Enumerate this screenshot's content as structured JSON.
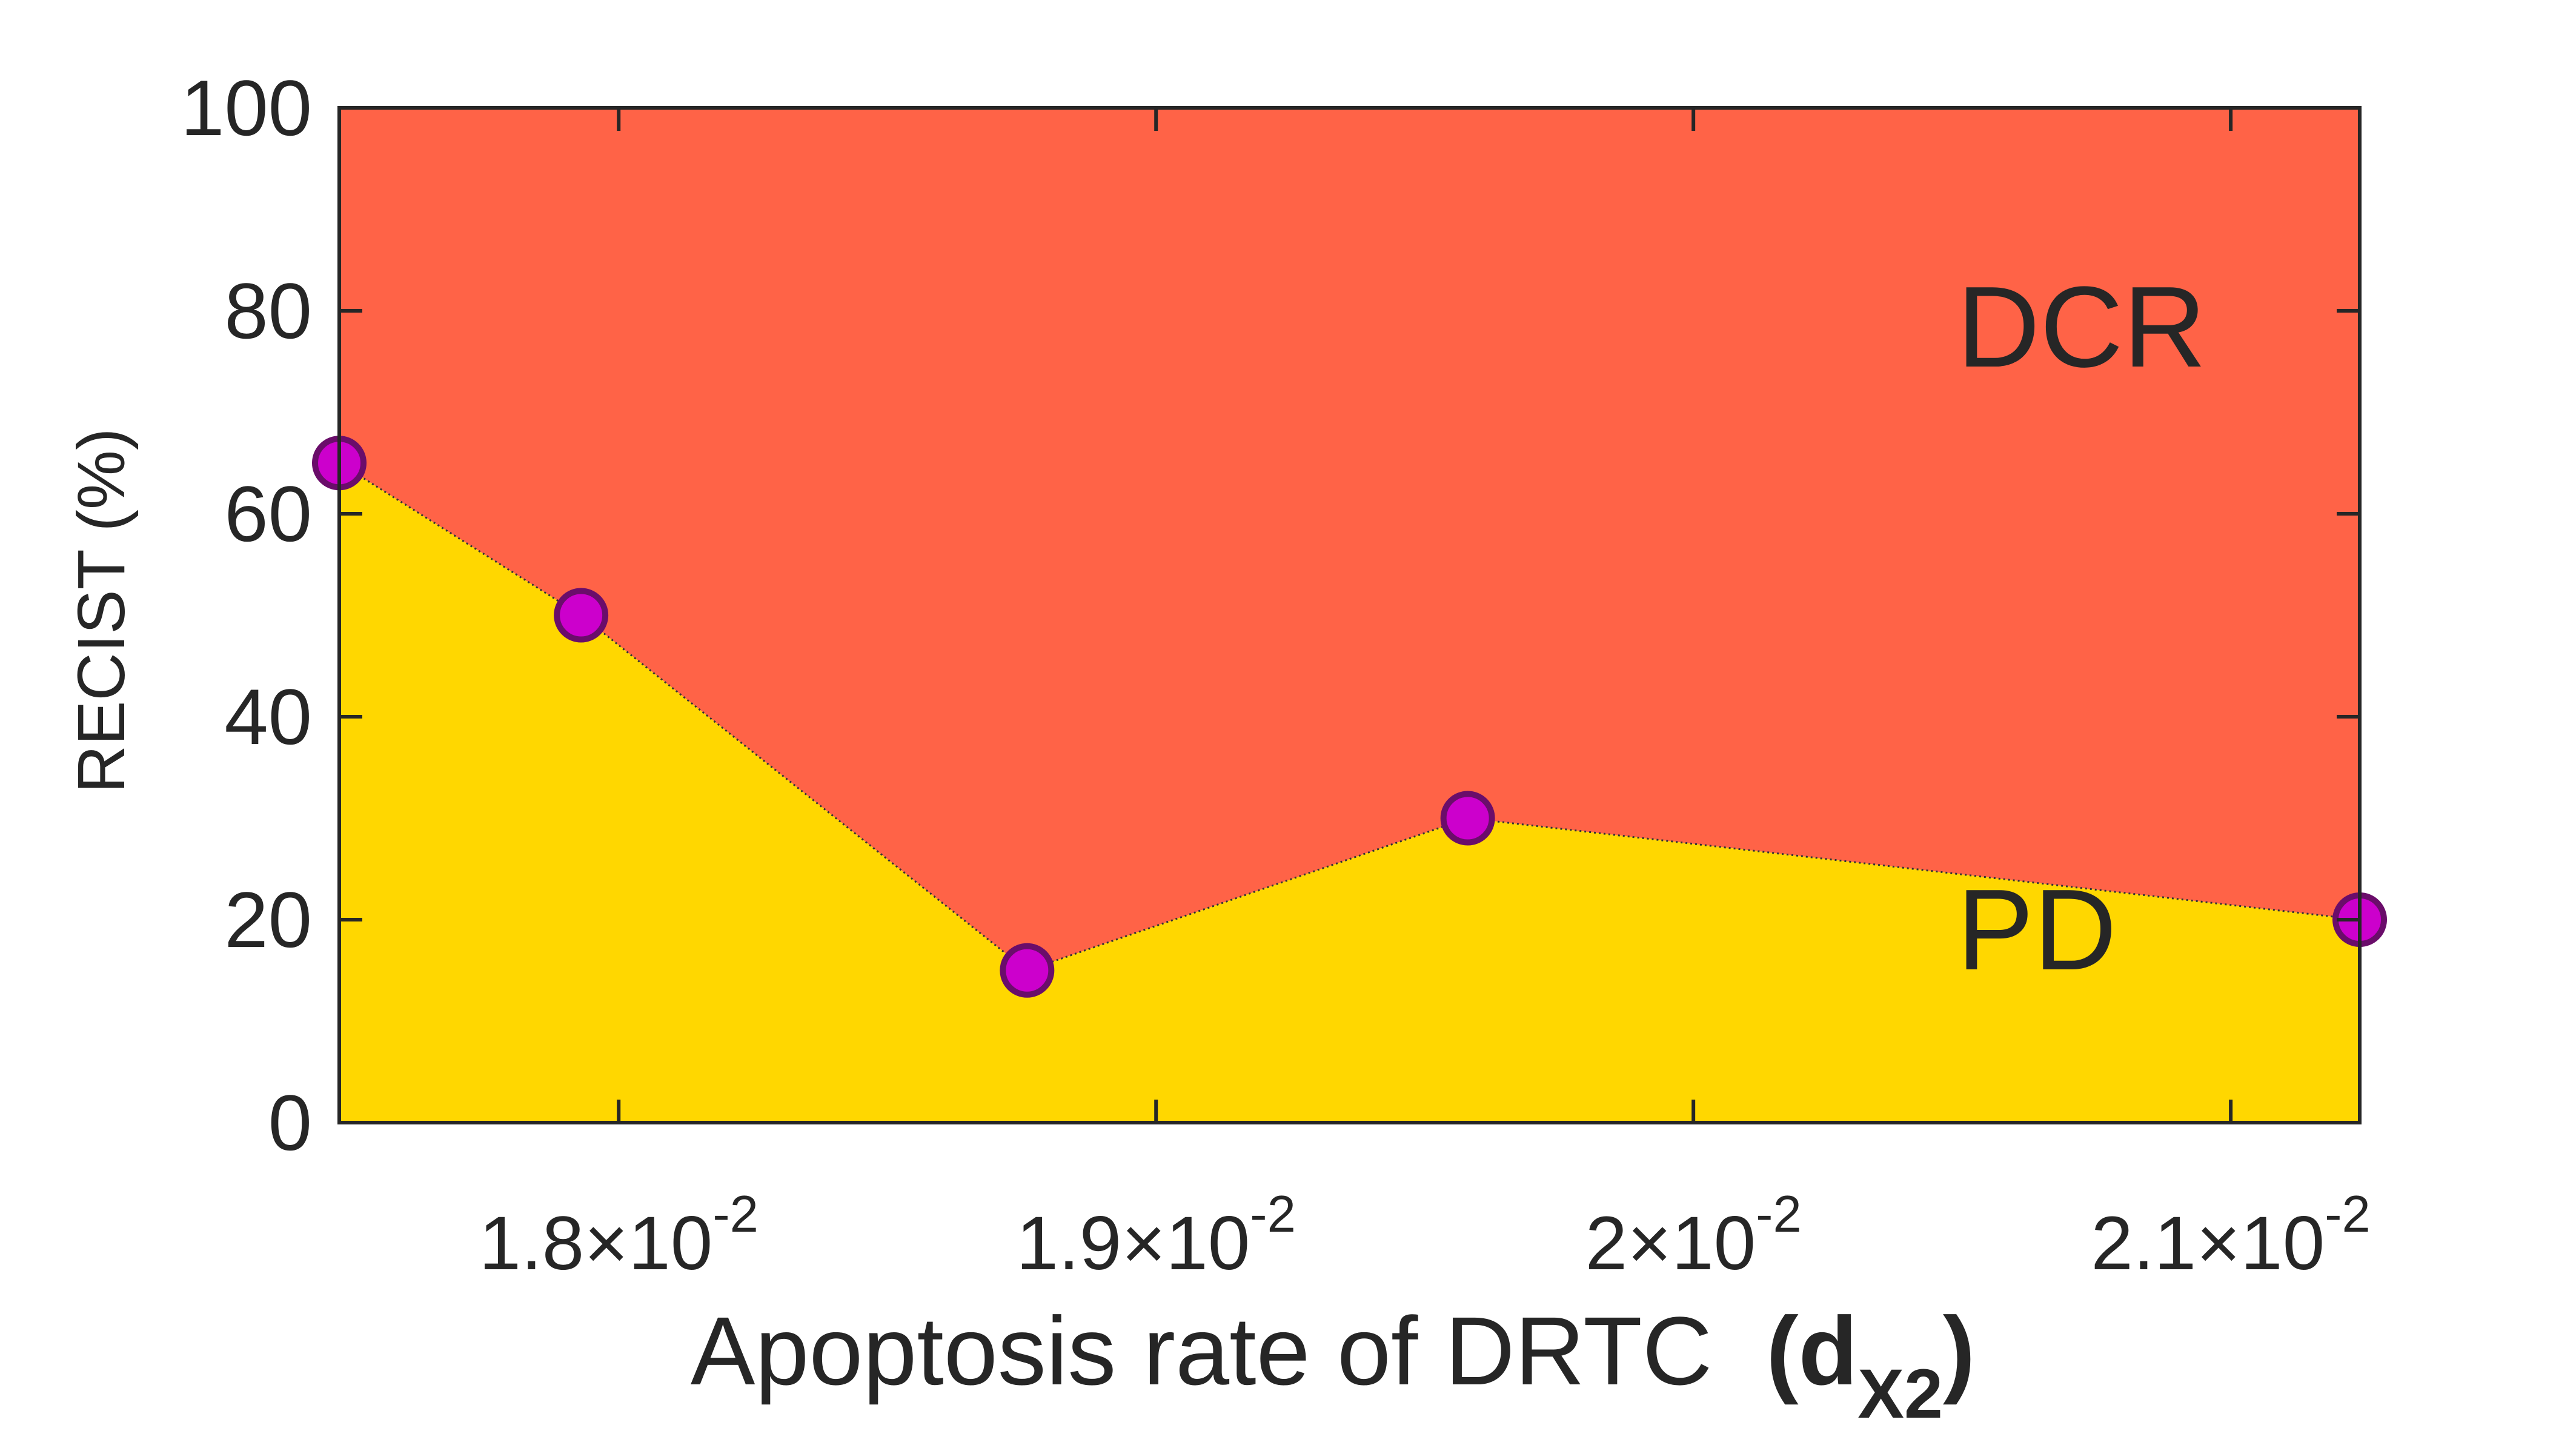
{
  "chart_data": {
    "type": "area",
    "title": "",
    "xlabel": "Apoptosis rate of DRTC",
    "xlabel_symbol": {
      "open": "(",
      "base": "d",
      "subscript": "X2",
      "close": ")"
    },
    "ylabel": "RECIST (%)",
    "xlim": [
      0.01748,
      0.02124
    ],
    "ylim": [
      0,
      100
    ],
    "x_ticks": [
      {
        "value": 0.018,
        "mantissa": "1.8",
        "times": "×",
        "base": "10",
        "exponent": "-2"
      },
      {
        "value": 0.019,
        "mantissa": "1.9",
        "times": "×",
        "base": "10",
        "exponent": "-2"
      },
      {
        "value": 0.02,
        "mantissa": "2",
        "times": "×",
        "base": "10",
        "exponent": "-2"
      },
      {
        "value": 0.021,
        "mantissa": "2.1",
        "times": "×",
        "base": "10",
        "exponent": "-2"
      }
    ],
    "y_ticks": [
      0,
      20,
      40,
      60,
      80,
      100
    ],
    "x": [
      0.01748,
      0.01793,
      0.01876,
      0.01958,
      0.02124
    ],
    "series": [
      {
        "name": "PD",
        "values": [
          65,
          50,
          15,
          30,
          20
        ],
        "color": "#FFD700"
      },
      {
        "name": "DCR",
        "values": [
          35,
          50,
          85,
          70,
          80
        ],
        "color": "#FF6347"
      }
    ],
    "region_labels": [
      "DCR",
      "PD"
    ],
    "marker_color": "#CC00CC",
    "marker_edge_color": "#6A0D6A",
    "grid": false,
    "legend": "none"
  }
}
